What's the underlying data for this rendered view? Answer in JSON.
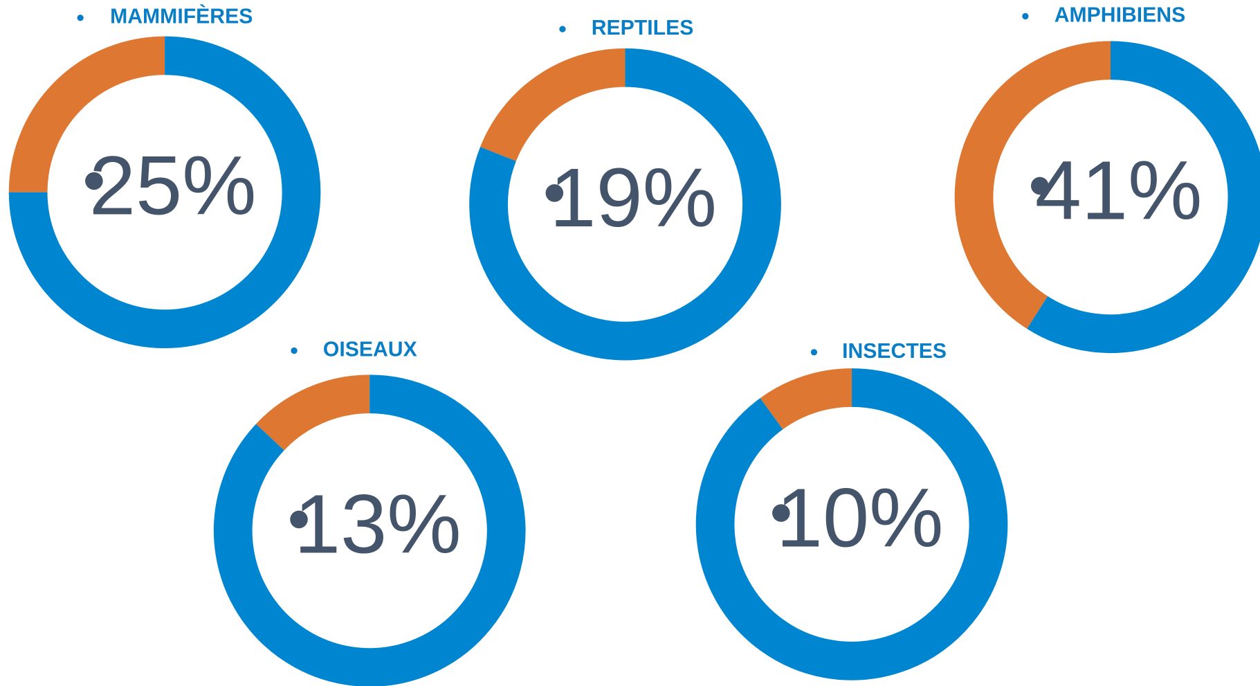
{
  "chart_data": [
    {
      "type": "pie",
      "title": "MAMMIFÈRES",
      "values": [
        25,
        75
      ],
      "value_labels": [
        "25%",
        null
      ],
      "colors": [
        "#DD7731",
        "#0086D1"
      ],
      "donut": true
    },
    {
      "type": "pie",
      "title": "REPTILES",
      "values": [
        19,
        81
      ],
      "value_labels": [
        "19%",
        null
      ],
      "colors": [
        "#DD7731",
        "#0086D1"
      ],
      "donut": true
    },
    {
      "type": "pie",
      "title": "AMPHIBIENS",
      "values": [
        41,
        59
      ],
      "value_labels": [
        "41%",
        null
      ],
      "colors": [
        "#DD7731",
        "#0086D1"
      ],
      "donut": true
    },
    {
      "type": "pie",
      "title": "OISEAUX",
      "values": [
        13,
        87
      ],
      "value_labels": [
        "13%",
        null
      ],
      "colors": [
        "#DD7731",
        "#0086D1"
      ],
      "donut": true
    },
    {
      "type": "pie",
      "title": "INSECTES",
      "values": [
        10,
        90
      ],
      "value_labels": [
        "10%",
        null
      ],
      "colors": [
        "#DD7731",
        "#0086D1"
      ],
      "donut": true
    }
  ]
}
